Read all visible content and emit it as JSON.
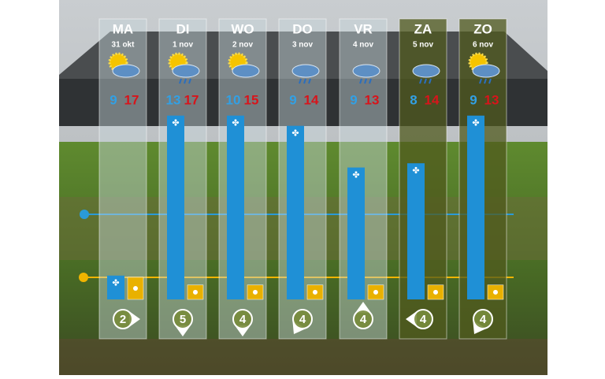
{
  "days": [
    {
      "name": "MA",
      "date": "31 okt",
      "min": 9,
      "max": 17,
      "wind_force": 2,
      "wind_bar": 28,
      "sun_bar": 26
    },
    {
      "name": "DI",
      "date": "1 nov",
      "min": 13,
      "max": 17,
      "wind_force": 5,
      "wind_bar": 216,
      "sun_bar": 17
    },
    {
      "name": "WO",
      "date": "2 nov",
      "min": 10,
      "max": 15,
      "wind_force": 4,
      "wind_bar": 216,
      "sun_bar": 17
    },
    {
      "name": "DO",
      "date": "3 nov",
      "min": 9,
      "max": 14,
      "wind_force": 4,
      "wind_bar": 204,
      "sun_bar": 17
    },
    {
      "name": "VR",
      "date": "4 nov",
      "min": 9,
      "max": 13,
      "wind_force": 4,
      "wind_bar": 155,
      "sun_bar": 17
    },
    {
      "name": "ZA",
      "date": "5 nov",
      "min": 8,
      "max": 14,
      "wind_force": 4,
      "wind_bar": 160,
      "sun_bar": 17
    },
    {
      "name": "ZO",
      "date": "6 nov",
      "min": 9,
      "max": 13,
      "wind_force": 4,
      "wind_bar": 216,
      "sun_bar": 17
    }
  ]
}
